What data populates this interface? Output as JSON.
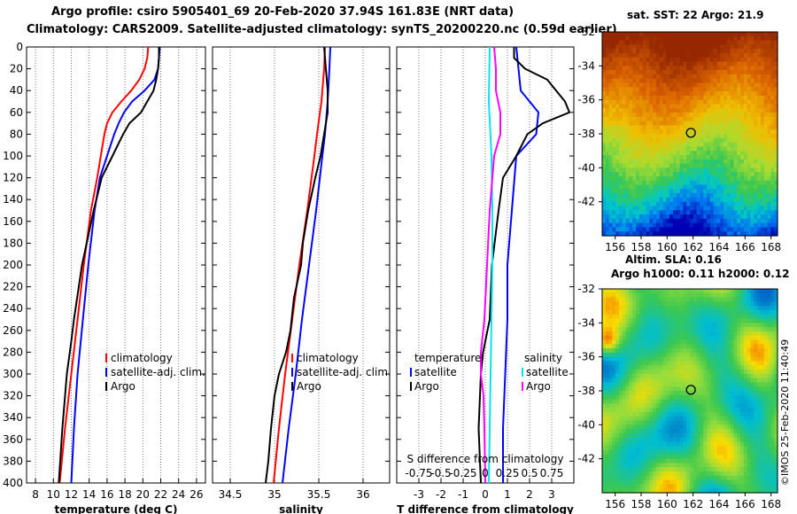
{
  "header": {
    "line1": "Argo profile: csiro 5905401_69 20-Feb-2020 37.94S 161.83E (NRT data)",
    "line2": "Climatology: CARS2009. Satellite-adjusted climatology: synTS_20200220.nc (0.59d earlier)"
  },
  "credit": "©IMOS 25-Feb-2020 11:40:49",
  "chart_data": [
    {
      "type": "line",
      "id": "temperature",
      "xlabel": "temperature (deg C)",
      "ylabel": "",
      "xlim": [
        7,
        27
      ],
      "ylim": [
        400,
        0
      ],
      "xticks": [
        "8",
        "10",
        "12",
        "14",
        "16",
        "18",
        "20",
        "22",
        "24",
        "26"
      ],
      "yticks": [
        "0",
        "20",
        "40",
        "60",
        "80",
        "100",
        "120",
        "140",
        "160",
        "180",
        "200",
        "220",
        "240",
        "260",
        "280",
        "300",
        "320",
        "340",
        "360",
        "380",
        "400"
      ],
      "legend": [
        "climatology",
        "satellite-adj. clim.",
        "Argo"
      ],
      "series": [
        {
          "name": "climatology",
          "color": "#ff0000",
          "depth": [
            0,
            10,
            20,
            30,
            40,
            50,
            60,
            70,
            80,
            100,
            120,
            150,
            200,
            250,
            300,
            350,
            400
          ],
          "values": [
            20.6,
            20.5,
            20.2,
            19.6,
            18.7,
            17.6,
            16.6,
            16.0,
            15.7,
            15.3,
            14.9,
            14.2,
            13.4,
            12.7,
            12.0,
            11.3,
            10.7
          ]
        },
        {
          "name": "satellite-adj. clim.",
          "color": "#0000ff",
          "depth": [
            0,
            10,
            20,
            30,
            40,
            50,
            60,
            70,
            80,
            100,
            120,
            150,
            200,
            250,
            300,
            350,
            400
          ],
          "values": [
            21.9,
            21.8,
            21.7,
            21.3,
            20.2,
            18.8,
            17.9,
            17.3,
            16.8,
            16.0,
            15.2,
            14.6,
            13.9,
            13.3,
            12.7,
            12.3,
            12.0
          ]
        },
        {
          "name": "Argo",
          "color": "#000000",
          "depth": [
            0,
            10,
            20,
            30,
            40,
            50,
            60,
            70,
            80,
            90,
            100,
            120,
            150,
            200,
            250,
            270,
            300,
            350,
            400
          ],
          "values": [
            21.8,
            21.8,
            21.7,
            21.5,
            21.2,
            20.5,
            19.8,
            18.5,
            17.8,
            17.2,
            16.6,
            15.4,
            14.5,
            13.2,
            12.3,
            12.0,
            11.5,
            11.0,
            10.6
          ]
        }
      ]
    },
    {
      "type": "line",
      "id": "salinity",
      "xlabel": "salinity",
      "ylabel": "",
      "xlim": [
        34.3,
        36.3
      ],
      "ylim": [
        400,
        0
      ],
      "xticks": [
        "34.5",
        "35",
        "35.5",
        "36"
      ],
      "legend": [
        "climatology",
        "satellite-adj. clim.",
        "Argo"
      ],
      "series": [
        {
          "name": "climatology",
          "color": "#ff0000",
          "depth": [
            0,
            20,
            50,
            80,
            100,
            150,
            200,
            250,
            300,
            350,
            400
          ],
          "values": [
            35.57,
            35.56,
            35.53,
            35.48,
            35.45,
            35.37,
            35.28,
            35.2,
            35.12,
            35.05,
            34.99
          ]
        },
        {
          "name": "satellite-adj. clim.",
          "color": "#0000ff",
          "depth": [
            0,
            20,
            50,
            80,
            100,
            150,
            200,
            250,
            300,
            350,
            400
          ],
          "values": [
            35.63,
            35.62,
            35.6,
            35.57,
            35.54,
            35.47,
            35.39,
            35.31,
            35.24,
            35.16,
            35.09
          ]
        },
        {
          "name": "Argo",
          "color": "#000000",
          "depth": [
            0,
            20,
            40,
            60,
            80,
            100,
            120,
            150,
            180,
            200,
            230,
            260,
            280,
            300,
            320,
            350,
            380,
            400
          ],
          "values": [
            35.56,
            35.58,
            35.6,
            35.6,
            35.56,
            35.52,
            35.46,
            35.38,
            35.32,
            35.3,
            35.22,
            35.18,
            35.13,
            35.05,
            35.0,
            34.96,
            34.93,
            34.9
          ]
        }
      ]
    },
    {
      "type": "line",
      "id": "difference",
      "xlabel": "T difference from climatology",
      "xlabel_top": "S difference from climatology",
      "ylabel": "",
      "xlim": [
        -4,
        4
      ],
      "ylim": [
        400,
        0
      ],
      "xticks": [
        "-3",
        "-2",
        "-1",
        "0",
        "1",
        "2",
        "3"
      ],
      "xticks_top": [
        "-0.75",
        "-0.5",
        "-0.25",
        "0",
        "0.25",
        "0.5",
        "0.75"
      ],
      "legend": [
        [
          "temperature",
          "satellite",
          "Argo"
        ],
        [
          "salinity",
          "satellite",
          "Argo"
        ]
      ],
      "series": [
        {
          "name": "T satellite",
          "color": "#0000ff",
          "depth": [
            0,
            20,
            40,
            60,
            80,
            100,
            150,
            200,
            250,
            300,
            350,
            400
          ],
          "values": [
            1.4,
            1.5,
            1.6,
            2.4,
            2.3,
            1.4,
            1.2,
            1.0,
            1.0,
            0.9,
            0.8,
            0.8
          ]
        },
        {
          "name": "T Argo",
          "color": "#000000",
          "depth": [
            0,
            10,
            20,
            30,
            40,
            50,
            60,
            70,
            80,
            100,
            120,
            150,
            200,
            250,
            280,
            300,
            350,
            400
          ],
          "values": [
            1.3,
            1.3,
            1.8,
            2.8,
            3.2,
            3.6,
            3.8,
            2.6,
            1.9,
            1.4,
            0.8,
            0.6,
            0.3,
            0.2,
            -0.1,
            -0.2,
            -0.3,
            -0.2
          ]
        },
        {
          "name": "S satellite",
          "color": "#00e5ee",
          "depth": [
            0,
            50,
            100,
            150,
            200,
            250,
            300,
            350,
            400
          ],
          "values": [
            0.05,
            0.04,
            0.07,
            0.08,
            0.08,
            0.07,
            0.06,
            0.05,
            0.04
          ]
        },
        {
          "name": "S Argo",
          "color": "#ff00ff",
          "depth": [
            0,
            20,
            40,
            60,
            80,
            100,
            150,
            200,
            250,
            280,
            300,
            320,
            350,
            400
          ],
          "values": [
            0.1,
            0.12,
            0.12,
            0.17,
            0.17,
            0.1,
            0.05,
            0.02,
            -0.01,
            -0.05,
            -0.05,
            -0.02,
            -0.01,
            0.0
          ]
        }
      ]
    },
    {
      "type": "heatmap",
      "id": "sst_map",
      "title": "sat. SST: 22 Argo: 21.9",
      "xticks": [
        "156",
        "158",
        "160",
        "162",
        "164",
        "166",
        "168"
      ],
      "yticks": [
        "-32",
        "-34",
        "-36",
        "-38",
        "-40",
        "-42"
      ],
      "xlim": [
        155,
        168.5
      ],
      "ylim": [
        -44,
        -32
      ],
      "marker": {
        "lon": 161.83,
        "lat": -37.94
      }
    },
    {
      "type": "heatmap",
      "id": "sla_map",
      "title": "Altim. SLA: 0.16",
      "subtitle": "Argo h1000: 0.11 h2000: 0.12",
      "xticks": [
        "156",
        "158",
        "160",
        "162",
        "164",
        "166",
        "168"
      ],
      "yticks": [
        "-32",
        "-34",
        "-36",
        "-38",
        "-40",
        "-42"
      ],
      "xlim": [
        155,
        168.5
      ],
      "ylim": [
        -44,
        -32
      ],
      "marker": {
        "lon": 161.83,
        "lat": -37.94
      }
    }
  ]
}
